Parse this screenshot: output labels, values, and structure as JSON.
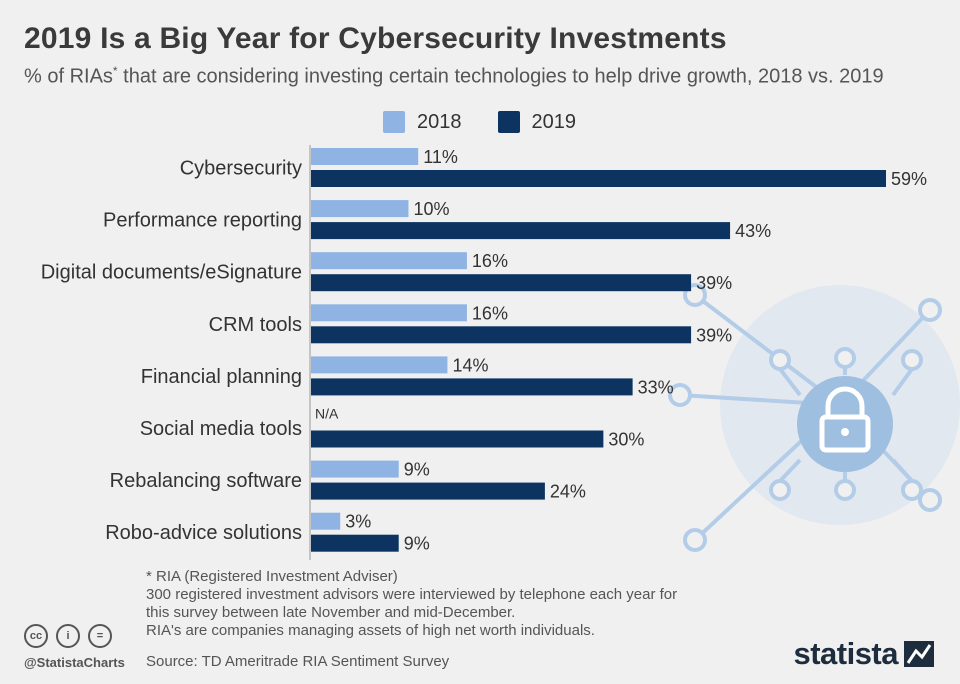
{
  "title": "2019 Is a Big Year for Cybersecurity Investments",
  "subtitle": {
    "before": "% of RIAs",
    "sup": "*",
    "after": " that are considering investing certain technologies to help drive growth, 2018 vs. 2019"
  },
  "colors": {
    "y2018": "#8fb3e3",
    "y2019": "#0d3461",
    "background": "#f0f0f0",
    "watermark": "#b3cde8"
  },
  "icon": "padlock-circuit-icon",
  "chart_data": {
    "type": "bar",
    "orientation": "horizontal",
    "categories": [
      "Cybersecurity",
      "Performance reporting",
      "Digital documents/eSignature",
      "CRM tools",
      "Financial planning",
      "Social media tools",
      "Rebalancing software",
      "Robo-advice solutions"
    ],
    "series": [
      {
        "name": "2018",
        "color": "#8fb3e3",
        "values": [
          11,
          10,
          16,
          16,
          14,
          null,
          9,
          3
        ],
        "labels": [
          "11%",
          "10%",
          "16%",
          "16%",
          "14%",
          "N/A",
          "9%",
          "3%"
        ]
      },
      {
        "name": "2019",
        "color": "#0d3461",
        "values": [
          59,
          43,
          39,
          39,
          33,
          30,
          24,
          9
        ],
        "labels": [
          "59%",
          "43%",
          "39%",
          "39%",
          "33%",
          "30%",
          "24%",
          "9%"
        ]
      }
    ],
    "xlim": [
      0,
      59
    ],
    "legend": "top-center",
    "grid": false
  },
  "footnotes": [
    "* RIA (Registered Investment Adviser)",
    "300 registered investment advisors were interviewed by telephone each year for",
    "this survey between late November and mid-December.",
    "RIA's are companies managing assets of high net worth individuals."
  ],
  "source": "Source: TD Ameritrade RIA Sentiment Survey",
  "handle": "@StatistaCharts",
  "brand": "statista",
  "cc_icons": [
    "cc",
    "i",
    "="
  ]
}
